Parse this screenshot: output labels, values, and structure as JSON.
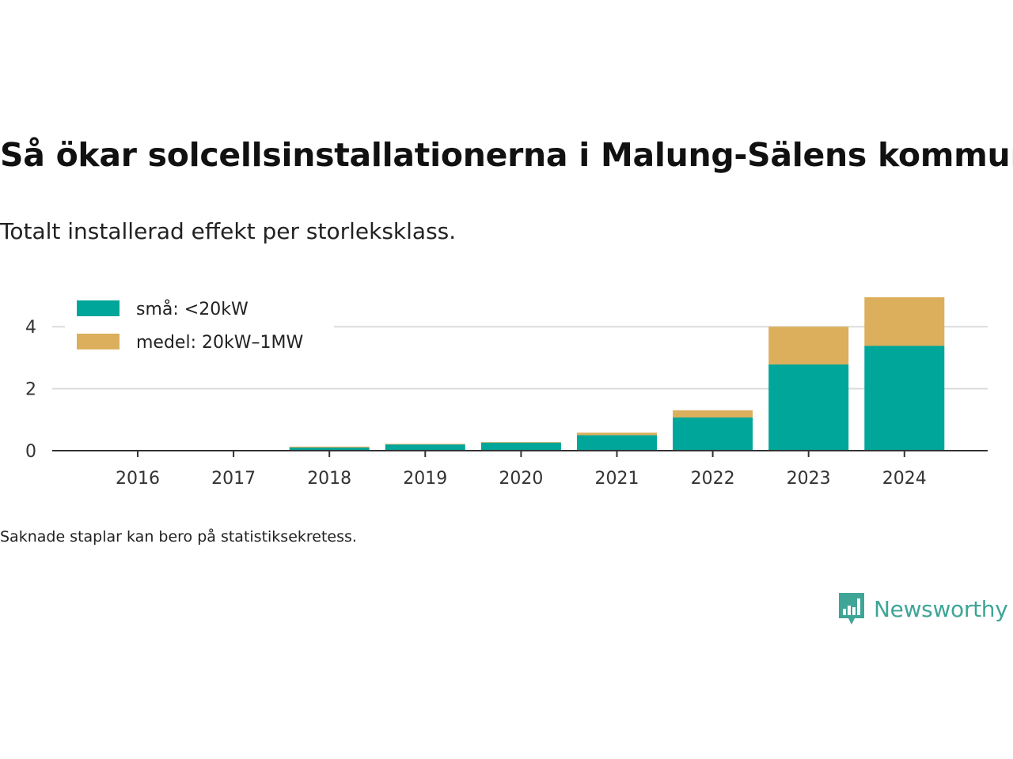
{
  "title": "Så ökar solcellsinstallationerna i Malung-Sälens kommun",
  "subtitle": "Totalt installerad effekt per storleksklass.",
  "note": "Saknade staplar kan bero på statistiksekretess.",
  "brand": {
    "name": "Newsworthy",
    "color": "#3ea597"
  },
  "chart_data": {
    "type": "bar",
    "stacked": true,
    "categories": [
      "2016",
      "2017",
      "2018",
      "2019",
      "2020",
      "2021",
      "2022",
      "2023",
      "2024"
    ],
    "series": [
      {
        "name": "små: <20kW",
        "color": "#00a699",
        "values": [
          0,
          0,
          0.1,
          0.2,
          0.26,
          0.5,
          1.07,
          2.78,
          3.38
        ]
      },
      {
        "name": "medel: 20kW–1MW",
        "color": "#dbaf5b",
        "values": [
          0,
          0,
          0.03,
          0.02,
          0.02,
          0.08,
          0.23,
          1.22,
          1.57
        ]
      }
    ],
    "ylim": [
      0,
      5.2
    ],
    "yticks": [
      0,
      2,
      4
    ],
    "grid": true,
    "legend": "top-left",
    "xlabel": "",
    "ylabel": ""
  }
}
